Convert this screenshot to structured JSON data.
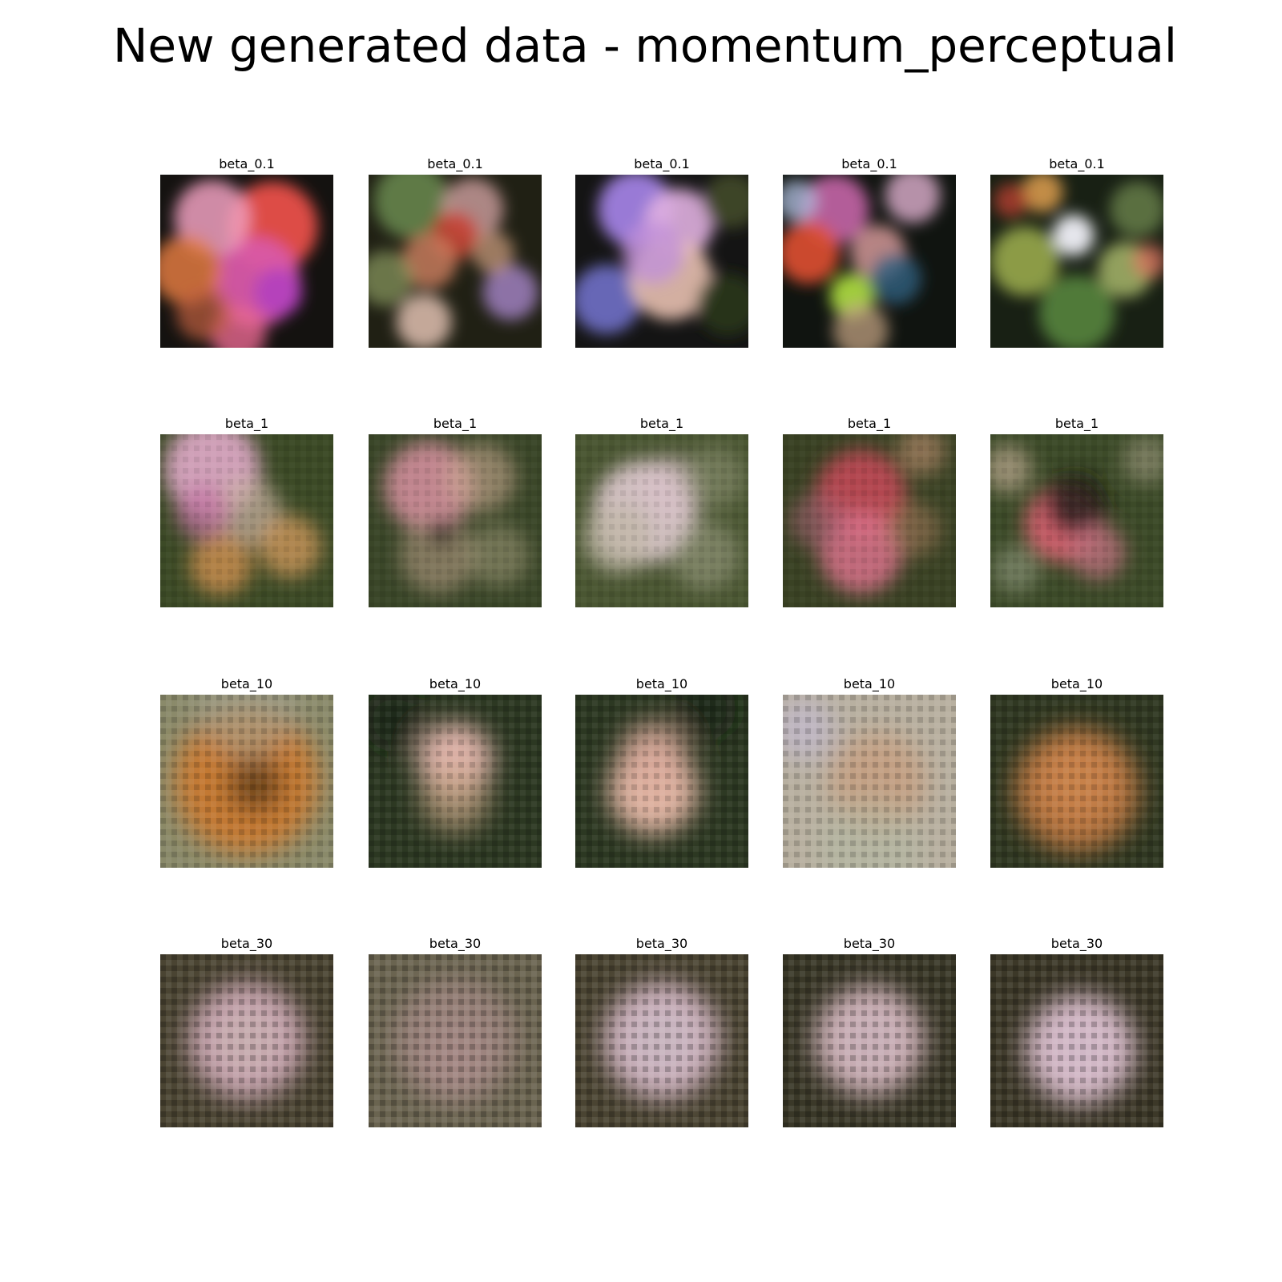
{
  "title": "New generated data - momentum_perceptual",
  "rows": [
    {
      "panels": [
        {
          "label": "beta_0.1",
          "base": "#141210",
          "blobs": [
            [
              "#e8504a",
              0.65,
              0.3,
              0.26,
              0.95
            ],
            [
              "#d85aa8",
              0.55,
              0.62,
              0.26,
              0.95
            ],
            [
              "#f0a0c0",
              0.3,
              0.25,
              0.22,
              0.85
            ],
            [
              "#e07a40",
              0.15,
              0.55,
              0.2,
              0.85
            ],
            [
              "#b040c0",
              0.68,
              0.68,
              0.14,
              0.85
            ],
            [
              "#e86890",
              0.45,
              0.92,
              0.16,
              0.8
            ],
            [
              "#c06040",
              0.25,
              0.8,
              0.16,
              0.7
            ]
          ]
        },
        {
          "label": "beta_0.1",
          "base": "#202014",
          "blobs": [
            [
              "#6a8a50",
              0.25,
              0.15,
              0.22,
              0.85
            ],
            [
              "#d0a0a0",
              0.6,
              0.2,
              0.18,
              0.8
            ],
            [
              "#c84030",
              0.5,
              0.35,
              0.14,
              0.85
            ],
            [
              "#d08060",
              0.35,
              0.5,
              0.16,
              0.8
            ],
            [
              "#a080c0",
              0.82,
              0.68,
              0.16,
              0.85
            ],
            [
              "#e0c0b0",
              0.32,
              0.85,
              0.16,
              0.85
            ],
            [
              "#8a9a60",
              0.1,
              0.6,
              0.16,
              0.7
            ],
            [
              "#d0a080",
              0.72,
              0.45,
              0.12,
              0.7
            ]
          ]
        },
        {
          "label": "beta_0.1",
          "base": "#141414",
          "blobs": [
            [
              "#a080e0",
              0.35,
              0.2,
              0.22,
              0.95
            ],
            [
              "#e0b0e0",
              0.6,
              0.28,
              0.2,
              0.9
            ],
            [
              "#7070c8",
              0.18,
              0.72,
              0.2,
              0.9
            ],
            [
              "#e8c0b0",
              0.55,
              0.6,
              0.24,
              0.9
            ],
            [
              "#c090d8",
              0.45,
              0.45,
              0.18,
              0.8
            ],
            [
              "#2c3c1c",
              0.88,
              0.75,
              0.18,
              0.75
            ],
            [
              "#505a30",
              0.9,
              0.15,
              0.16,
              0.7
            ]
          ]
        },
        {
          "label": "beta_0.1",
          "base": "#101410",
          "blobs": [
            [
              "#d06ab0",
              0.3,
              0.2,
              0.2,
              0.85
            ],
            [
              "#e05030",
              0.15,
              0.45,
              0.18,
              0.9
            ],
            [
              "#b0e040",
              0.4,
              0.7,
              0.13,
              0.9
            ],
            [
              "#e0a0a0",
              0.55,
              0.45,
              0.16,
              0.8
            ],
            [
              "#306080",
              0.65,
              0.6,
              0.15,
              0.8
            ],
            [
              "#e0b0d0",
              0.75,
              0.12,
              0.16,
              0.8
            ],
            [
              "#c0a080",
              0.45,
              0.9,
              0.16,
              0.75
            ],
            [
              "#b0c0e0",
              0.08,
              0.15,
              0.12,
              0.75
            ]
          ]
        },
        {
          "label": "beta_0.1",
          "base": "#182014",
          "blobs": [
            [
              "#f0f0f8",
              0.48,
              0.35,
              0.12,
              0.95
            ],
            [
              "#a0b050",
              0.2,
              0.5,
              0.2,
              0.85
            ],
            [
              "#5a8a40",
              0.5,
              0.8,
              0.22,
              0.85
            ],
            [
              "#e0a050",
              0.3,
              0.1,
              0.12,
              0.85
            ],
            [
              "#c04030",
              0.12,
              0.15,
              0.1,
              0.75
            ],
            [
              "#b0c070",
              0.78,
              0.55,
              0.16,
              0.8
            ],
            [
              "#e07060",
              0.92,
              0.5,
              0.1,
              0.7
            ],
            [
              "#708a50",
              0.85,
              0.2,
              0.16,
              0.75
            ]
          ]
        }
      ]
    },
    {
      "panels": [
        {
          "label": "beta_1",
          "base": "#3c4a26",
          "blobs": [
            [
              "#e0a8c8",
              0.3,
              0.2,
              0.28,
              0.9
            ],
            [
              "#c8b0a0",
              0.5,
              0.45,
              0.2,
              0.7
            ],
            [
              "#d09050",
              0.35,
              0.75,
              0.18,
              0.8
            ],
            [
              "#e0a060",
              0.75,
              0.65,
              0.18,
              0.7
            ],
            [
              "#c070a0",
              0.25,
              0.45,
              0.16,
              0.7
            ]
          ]
        },
        {
          "label": "beta_1",
          "base": "#3a4628",
          "blobs": [
            [
              "#d890a0",
              0.35,
              0.3,
              0.26,
              0.85
            ],
            [
              "#c8a890",
              0.65,
              0.25,
              0.2,
              0.6
            ],
            [
              "#b09880",
              0.4,
              0.7,
              0.22,
              0.6
            ],
            [
              "#1a1a10",
              0.42,
              0.57,
              0.08,
              0.85
            ],
            [
              "#a8a080",
              0.75,
              0.7,
              0.18,
              0.5
            ]
          ]
        },
        {
          "label": "beta_1",
          "base": "#4a5632",
          "blobs": [
            [
              "#e8d0d8",
              0.4,
              0.45,
              0.3,
              0.85
            ],
            [
              "#c0b8a8",
              0.25,
              0.6,
              0.2,
              0.8
            ],
            [
              "#d8c0c8",
              0.55,
              0.3,
              0.18,
              0.6
            ],
            [
              "#8a9070",
              0.8,
              0.25,
              0.18,
              0.6
            ],
            [
              "#a8a890",
              0.75,
              0.7,
              0.2,
              0.5
            ]
          ]
        },
        {
          "label": "beta_1",
          "base": "#3a4224",
          "blobs": [
            [
              "#c84858",
              0.45,
              0.35,
              0.26,
              0.85
            ],
            [
              "#d87088",
              0.45,
              0.68,
              0.24,
              0.85
            ],
            [
              "#b08060",
              0.75,
              0.55,
              0.16,
              0.5
            ],
            [
              "#c09070",
              0.8,
              0.1,
              0.14,
              0.6
            ],
            [
              "#a06070",
              0.2,
              0.5,
              0.16,
              0.6
            ]
          ]
        },
        {
          "label": "beta_1",
          "base": "#3c4a28",
          "blobs": [
            [
              "#d86070",
              0.42,
              0.52,
              0.22,
              0.9
            ],
            [
              "#1c1c14",
              0.5,
              0.4,
              0.18,
              0.8
            ],
            [
              "#c07080",
              0.62,
              0.68,
              0.16,
              0.75
            ],
            [
              "#d0b8a0",
              0.1,
              0.2,
              0.14,
              0.6
            ],
            [
              "#b0a890",
              0.9,
              0.15,
              0.14,
              0.5
            ],
            [
              "#a0a890",
              0.15,
              0.78,
              0.14,
              0.5
            ]
          ]
        }
      ]
    },
    {
      "panels": [
        {
          "label": "beta_10",
          "base": "#8a8a6a",
          "blobs": [
            [
              "#c87830",
              0.5,
              0.5,
              0.42,
              0.95
            ],
            [
              "#4a3018",
              0.55,
              0.52,
              0.16,
              0.7
            ],
            [
              "#a0a090",
              0.5,
              0.05,
              0.3,
              0.6
            ]
          ]
        },
        {
          "label": "beta_10",
          "base": "#2c3822",
          "blobs": [
            [
              "#e8b8b0",
              0.5,
              0.38,
              0.22,
              0.95
            ],
            [
              "#c0a080",
              0.5,
              0.6,
              0.2,
              0.7
            ],
            [
              "#101a10",
              0.15,
              0.15,
              0.18,
              0.6
            ]
          ]
        },
        {
          "label": "beta_10",
          "base": "#2c3822",
          "blobs": [
            [
              "#e8b8a8",
              0.45,
              0.55,
              0.26,
              0.95
            ],
            [
              "#d8a898",
              0.45,
              0.35,
              0.2,
              0.8
            ],
            [
              "#101a10",
              0.75,
              0.08,
              0.18,
              0.6
            ]
          ]
        },
        {
          "label": "beta_10",
          "base": "#b8b0a0",
          "blobs": [
            [
              "#c89878",
              0.55,
              0.5,
              0.28,
              0.7
            ],
            [
              "#c0b8d0",
              0.12,
              0.2,
              0.18,
              0.7
            ],
            [
              "#b0b8a0",
              0.5,
              0.9,
              0.3,
              0.5
            ]
          ]
        },
        {
          "label": "beta_10",
          "base": "#303822",
          "blobs": [
            [
              "#c07840",
              0.5,
              0.55,
              0.36,
              0.9
            ],
            [
              "#d08850",
              0.5,
              0.5,
              0.22,
              0.7
            ]
          ]
        }
      ]
    },
    {
      "panels": [
        {
          "label": "beta_30",
          "base": "#4a4432",
          "blobs": [
            [
              "#d0a8b8",
              0.5,
              0.5,
              0.34,
              0.9
            ],
            [
              "#c8b0b0",
              0.5,
              0.5,
              0.2,
              0.7
            ]
          ]
        },
        {
          "label": "beta_30",
          "base": "#6a6450",
          "blobs": [
            [
              "#a88a88",
              0.5,
              0.5,
              0.36,
              0.7
            ],
            [
              "#b09090",
              0.5,
              0.6,
              0.2,
              0.5
            ]
          ]
        },
        {
          "label": "beta_30",
          "base": "#4a4432",
          "blobs": [
            [
              "#d8b8c8",
              0.5,
              0.5,
              0.34,
              0.9
            ],
            [
              "#c8b8c0",
              0.5,
              0.5,
              0.22,
              0.7
            ]
          ]
        },
        {
          "label": "beta_30",
          "base": "#3a3828",
          "blobs": [
            [
              "#d8b8c0",
              0.5,
              0.5,
              0.32,
              0.9
            ],
            [
              "#c8b0b8",
              0.5,
              0.5,
              0.2,
              0.7
            ]
          ]
        },
        {
          "label": "beta_30",
          "base": "#3c3828",
          "blobs": [
            [
              "#e0c0d0",
              0.52,
              0.55,
              0.32,
              0.92
            ],
            [
              "#d0b8c8",
              0.52,
              0.55,
              0.2,
              0.7
            ]
          ]
        }
      ]
    }
  ]
}
